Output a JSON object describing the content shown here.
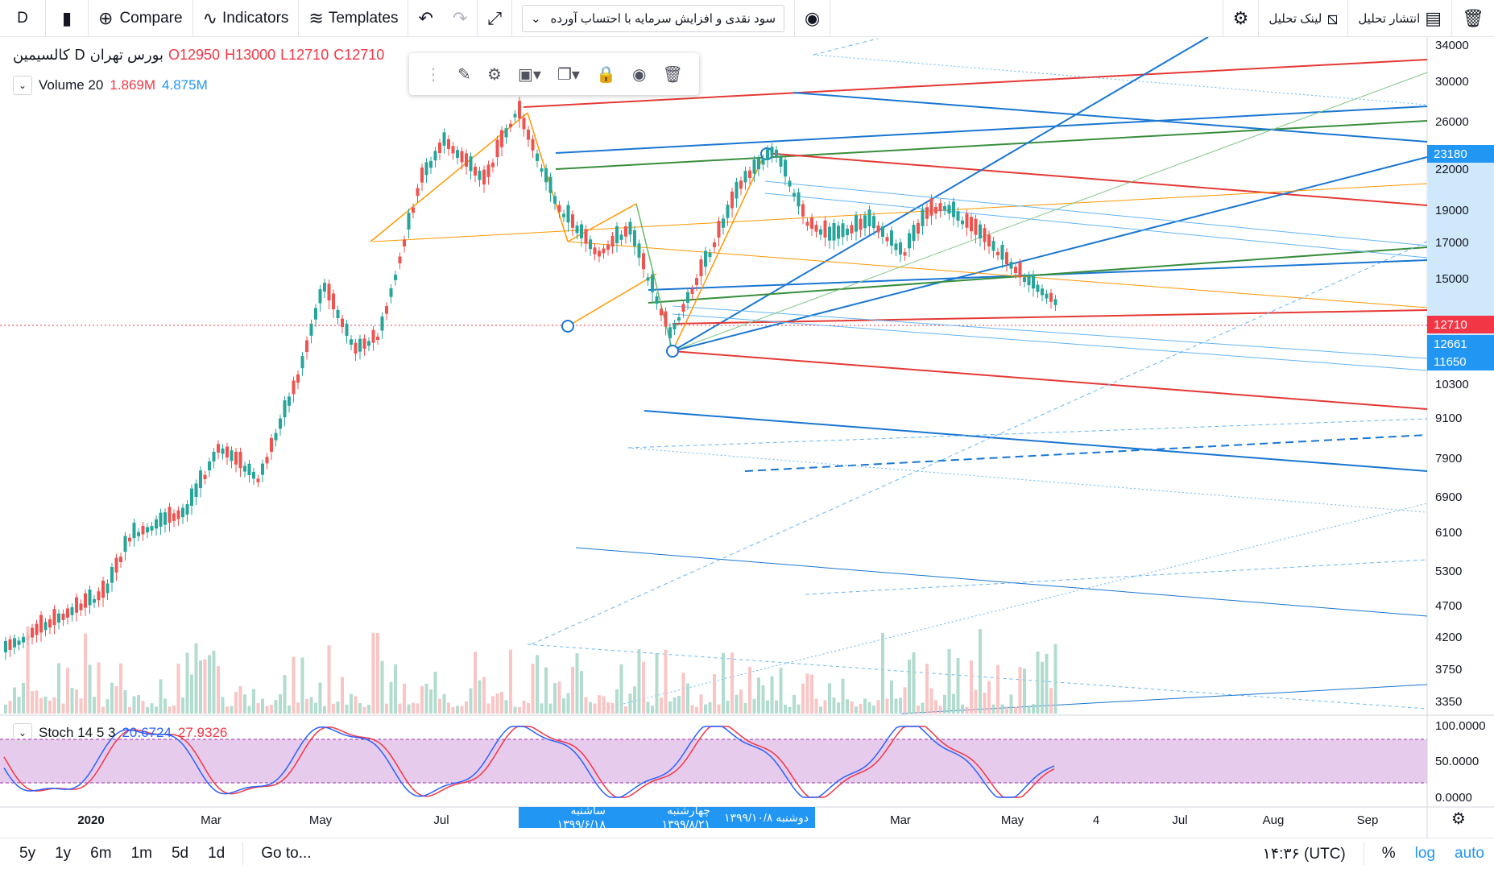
{
  "toolbar": {
    "symbol": "D",
    "compare_label": "Compare",
    "indicators_label": "Indicators",
    "templates_label": "Templates",
    "dropdown_value": "سود نقدی و افزایش سرمایه با احتساب آورده",
    "share_link_label": "لینک تحلیل",
    "publish_label": "انتشار تحلیل"
  },
  "legend": {
    "name": "کالسیمین",
    "exchange": "بورس تهران",
    "interval": "D",
    "open": "O12950",
    "high": "H13000",
    "low": "L12710",
    "close": "C12710",
    "volume_title": "Volume 20",
    "volume_a": "1.869M",
    "volume_b": "4.875M",
    "stoch_title": "Stoch 14 5 3",
    "stoch_k": "20.6724",
    "stoch_d": "27.9326"
  },
  "price_axis": [
    "34000",
    "30000",
    "26000",
    "22000",
    "19000",
    "17000",
    "15000",
    "10300",
    "9100",
    "7900",
    "6900",
    "6100",
    "5300",
    "4700",
    "4200",
    "3750",
    "3350"
  ],
  "price_labels": [
    {
      "text": "23180",
      "color": "#2196f3"
    },
    {
      "text": "12710",
      "color": "#f23645"
    },
    {
      "text": "12661",
      "color": "#2196f3"
    },
    {
      "text": "11650",
      "color": "#2196f3"
    }
  ],
  "stoch_axis": [
    "100.0000",
    "50.0000",
    "0.0000"
  ],
  "time_axis": [
    "2020",
    "Mar",
    "May",
    "Jul",
    "Mar",
    "May",
    "4",
    "Jul",
    "Aug",
    "Sep"
  ],
  "date_labels": [
    "ساشنبه ۱۳۹۹/۶/۱۸",
    "چهارشنبه ۱۳۹۹/۸/۲۱",
    "دوشنبه ۱۳۹۹/۱۰/۸"
  ],
  "bottom": {
    "ranges": [
      "5y",
      "1y",
      "6m",
      "1m",
      "5d",
      "1d"
    ],
    "goto": "Go to...",
    "clock": "۱۴:۳۶ (UTC)",
    "percent": "%",
    "log": "log",
    "auto": "auto"
  },
  "colors": {
    "up": "#26a69a",
    "down": "#ef5350",
    "accent": "#2196f3",
    "drawing_red": "#e53935",
    "drawing_green": "#388e3c",
    "drawing_orange": "#ff9800"
  }
}
